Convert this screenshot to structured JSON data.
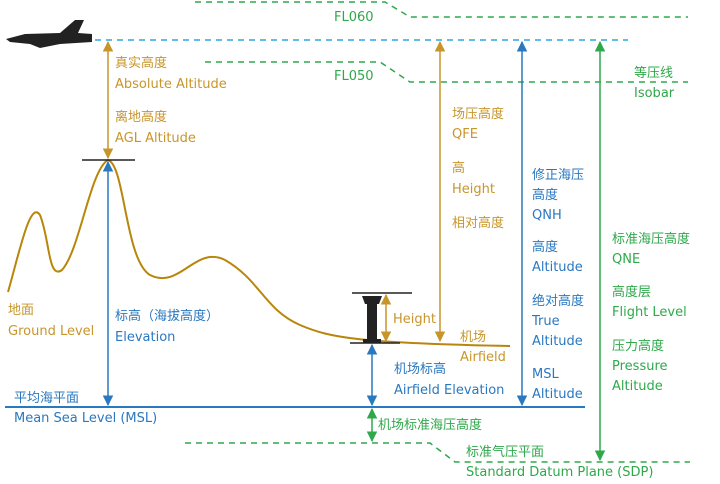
{
  "flight_levels": {
    "upper": "FL060",
    "lower": "FL050"
  },
  "isobar": {
    "zh": "等压线",
    "en": "Isobar"
  },
  "absolute_altitude": {
    "zh": "真实高度",
    "en": "Absolute Altitude"
  },
  "agl_altitude": {
    "zh": "离地高度",
    "en": "AGL Altitude"
  },
  "qfe": {
    "zh": "场压高度",
    "en": "QFE",
    "height_zh": "高",
    "height_en": "Height",
    "relative_zh": "相对高度"
  },
  "qnh": {
    "zh_1": "修正海压",
    "zh_2": "高度",
    "en": "QNH",
    "alt_zh": "高度",
    "alt_en": "Altitude",
    "true_zh": "绝对高度",
    "true_en_1": "True",
    "true_en_2": "Altitude",
    "msl_en_1": "MSL",
    "msl_en_2": "Altitude"
  },
  "qne": {
    "zh": "标准海压高度",
    "en": "QNE",
    "fl_zh": "高度层",
    "fl_en": "Flight Level",
    "pa_zh": "压力高度",
    "pa_en_1": "Pressure",
    "pa_en_2": "Altitude"
  },
  "ground_level": {
    "zh": "地面",
    "en": "Ground Level"
  },
  "elevation": {
    "zh": "标高（海拔高度）",
    "en": "Elevation"
  },
  "height": "Height",
  "airfield": {
    "zh": "机场",
    "en": "Airfield"
  },
  "airfield_elevation": {
    "zh": "机场标高",
    "en": "Airfield Elevation"
  },
  "msl": {
    "zh": "平均海平面",
    "en": "Mean Sea Level (MSL)"
  },
  "airfield_std_pressure_altitude": "机场标准海压高度",
  "sdp": {
    "zh": "标准气压平面",
    "en": "Standard Datum Plane (SDP)"
  }
}
